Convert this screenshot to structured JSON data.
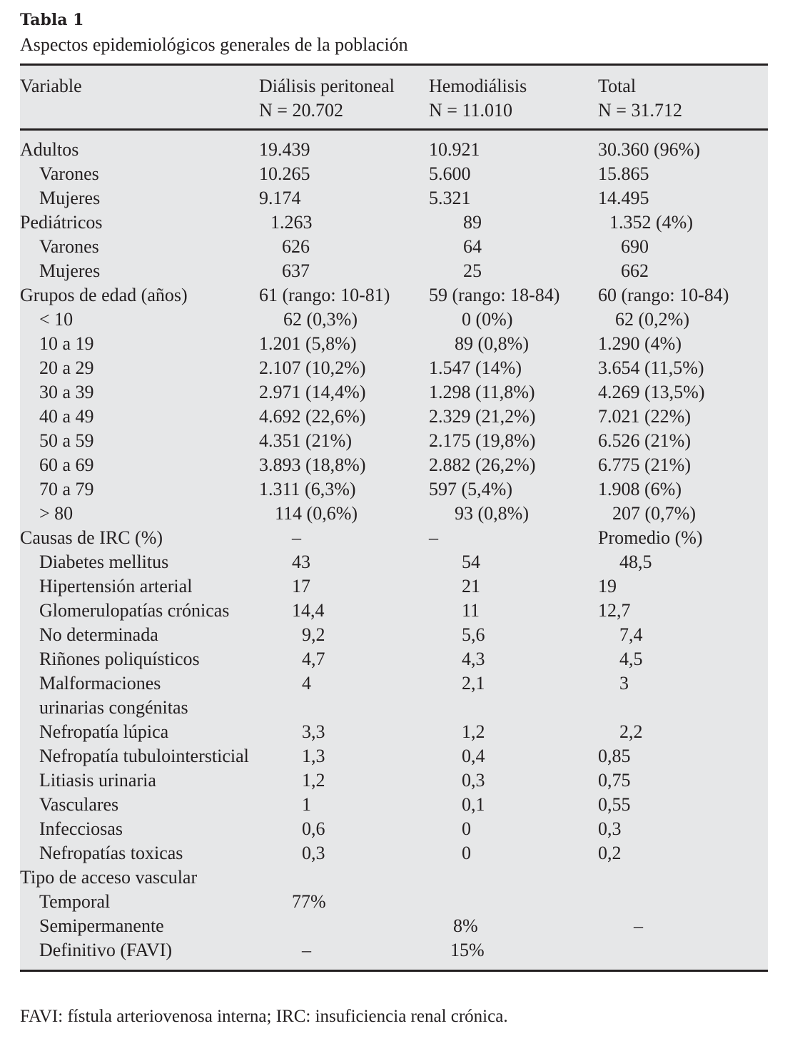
{
  "table": {
    "label": "Tabla 1",
    "caption": "Aspectos epidemiológicos generales de la población",
    "headers": [
      {
        "name": "Variable",
        "n": ""
      },
      {
        "name": "Diálisis peritoneal",
        "n": "N = 20.702"
      },
      {
        "name": "Hemodiálisis",
        "n": "N = 11.010"
      },
      {
        "name": "Total",
        "n": "N = 31.712"
      }
    ],
    "rows": [
      {
        "label": "Adultos",
        "level": 0,
        "cells": [
          "19.439",
          "10.921",
          "30.360 (96%)"
        ]
      },
      {
        "label": "Varones",
        "level": 1,
        "cells": [
          "10.265",
          "5.600",
          "15.865"
        ]
      },
      {
        "label": "Mujeres",
        "level": 1,
        "cells": [
          "9.174",
          "5.321",
          "14.495"
        ]
      },
      {
        "label": "Pediátricos",
        "level": 0,
        "cells": [
          "1.263",
          "89",
          "1.352 (4%)"
        ]
      },
      {
        "label": "Varones",
        "level": 1,
        "cells": [
          "626",
          "64",
          "690"
        ]
      },
      {
        "label": "Mujeres",
        "level": 1,
        "cells": [
          "637",
          "25",
          "662"
        ]
      },
      {
        "label": "Grupos de edad (años)",
        "level": 0,
        "cells": [
          "61 (rango: 10-81)",
          "59 (rango: 18-84)",
          "60 (rango: 10-84)"
        ]
      },
      {
        "label": "< 10",
        "level": 1,
        "cells": [
          "62 (0,3%)",
          "0 (0%)",
          "62 (0,2%)"
        ]
      },
      {
        "label": "10 a 19",
        "level": 1,
        "cells": [
          "1.201 (5,8%)",
          "89 (0,8%)",
          "1.290 (4%)"
        ]
      },
      {
        "label": "20 a 29",
        "level": 1,
        "cells": [
          "2.107 (10,2%)",
          "1.547 (14%)",
          "3.654 (11,5%)"
        ]
      },
      {
        "label": "30 a 39",
        "level": 1,
        "cells": [
          "2.971 (14,4%)",
          "1.298 (11,8%)",
          "4.269 (13,5%)"
        ]
      },
      {
        "label": "40 a 49",
        "level": 1,
        "cells": [
          "4.692 (22,6%)",
          "2.329 (21,2%)",
          "7.021 (22%)"
        ]
      },
      {
        "label": "50 a 59",
        "level": 1,
        "cells": [
          "4.351 (21%)",
          "2.175 (19,8%)",
          "6.526 (21%)"
        ]
      },
      {
        "label": "60 a 69",
        "level": 1,
        "cells": [
          "3.893 (18,8%)",
          "2.882 (26,2%)",
          "6.775 (21%)"
        ]
      },
      {
        "label": "70 a 79",
        "level": 1,
        "cells": [
          "1.311 (6,3%)",
          "597 (5,4%)",
          "1.908 (6%)"
        ]
      },
      {
        "label": "> 80",
        "level": 1,
        "cells": [
          "114 (0,6%)",
          "93 (0,8%)",
          "207 (0,7%)"
        ]
      },
      {
        "label": "Causas de IRC (%)",
        "level": 0,
        "cells": [
          "–",
          "–",
          "Promedio (%)"
        ]
      },
      {
        "label": "Diabetes mellitus",
        "level": 1,
        "cells": [
          "43",
          "54",
          "48,5"
        ]
      },
      {
        "label": "Hipertensión arterial",
        "level": 1,
        "cells": [
          "17",
          "21",
          "19"
        ]
      },
      {
        "label": "Glomerulopatías crónicas",
        "level": 1,
        "cells": [
          "14,4",
          "11",
          "12,7"
        ]
      },
      {
        "label": "No determinada",
        "level": 1,
        "cells": [
          "9,2",
          "5,6",
          "7,4"
        ]
      },
      {
        "label": "Riñones poliquísticos",
        "level": 1,
        "cells": [
          "4,7",
          "4,3",
          "4,5"
        ]
      },
      {
        "label": "Malformaciones urinarias congénitas",
        "level": 1,
        "cells": [
          "4",
          "2,1",
          "3"
        ]
      },
      {
        "label": "Nefropatía lúpica",
        "level": 1,
        "cells": [
          "3,3",
          "1,2",
          "2,2"
        ]
      },
      {
        "label": "Nefropatía tubulointersticial",
        "level": 1,
        "cells": [
          "1,3",
          "0,4",
          "0,85"
        ]
      },
      {
        "label": "Litiasis urinaria",
        "level": 1,
        "cells": [
          "1,2",
          "0,3",
          "0,75"
        ]
      },
      {
        "label": "Vasculares",
        "level": 1,
        "cells": [
          "1",
          "0,1",
          "0,55"
        ]
      },
      {
        "label": "Infecciosas",
        "level": 1,
        "cells": [
          "0,6",
          "0",
          "0,3"
        ]
      },
      {
        "label": "Nefropatías toxicas",
        "level": 1,
        "cells": [
          "0,3",
          "0",
          "0,2"
        ]
      },
      {
        "label": "Tipo de acceso vascular",
        "level": 0,
        "cells": [
          "",
          "",
          ""
        ]
      },
      {
        "label": "Temporal",
        "level": 1,
        "cells": [
          "77%",
          "",
          ""
        ]
      },
      {
        "label": "Semipermanente",
        "level": 1,
        "cells": [
          "",
          "8%",
          "–"
        ]
      },
      {
        "label": "Definitivo (FAVI)",
        "level": 1,
        "cells": [
          "–",
          "15%",
          ""
        ]
      }
    ],
    "footnote": "FAVI: fístula arteriovenosa interna; IRC: insuficiencia renal crónica."
  }
}
